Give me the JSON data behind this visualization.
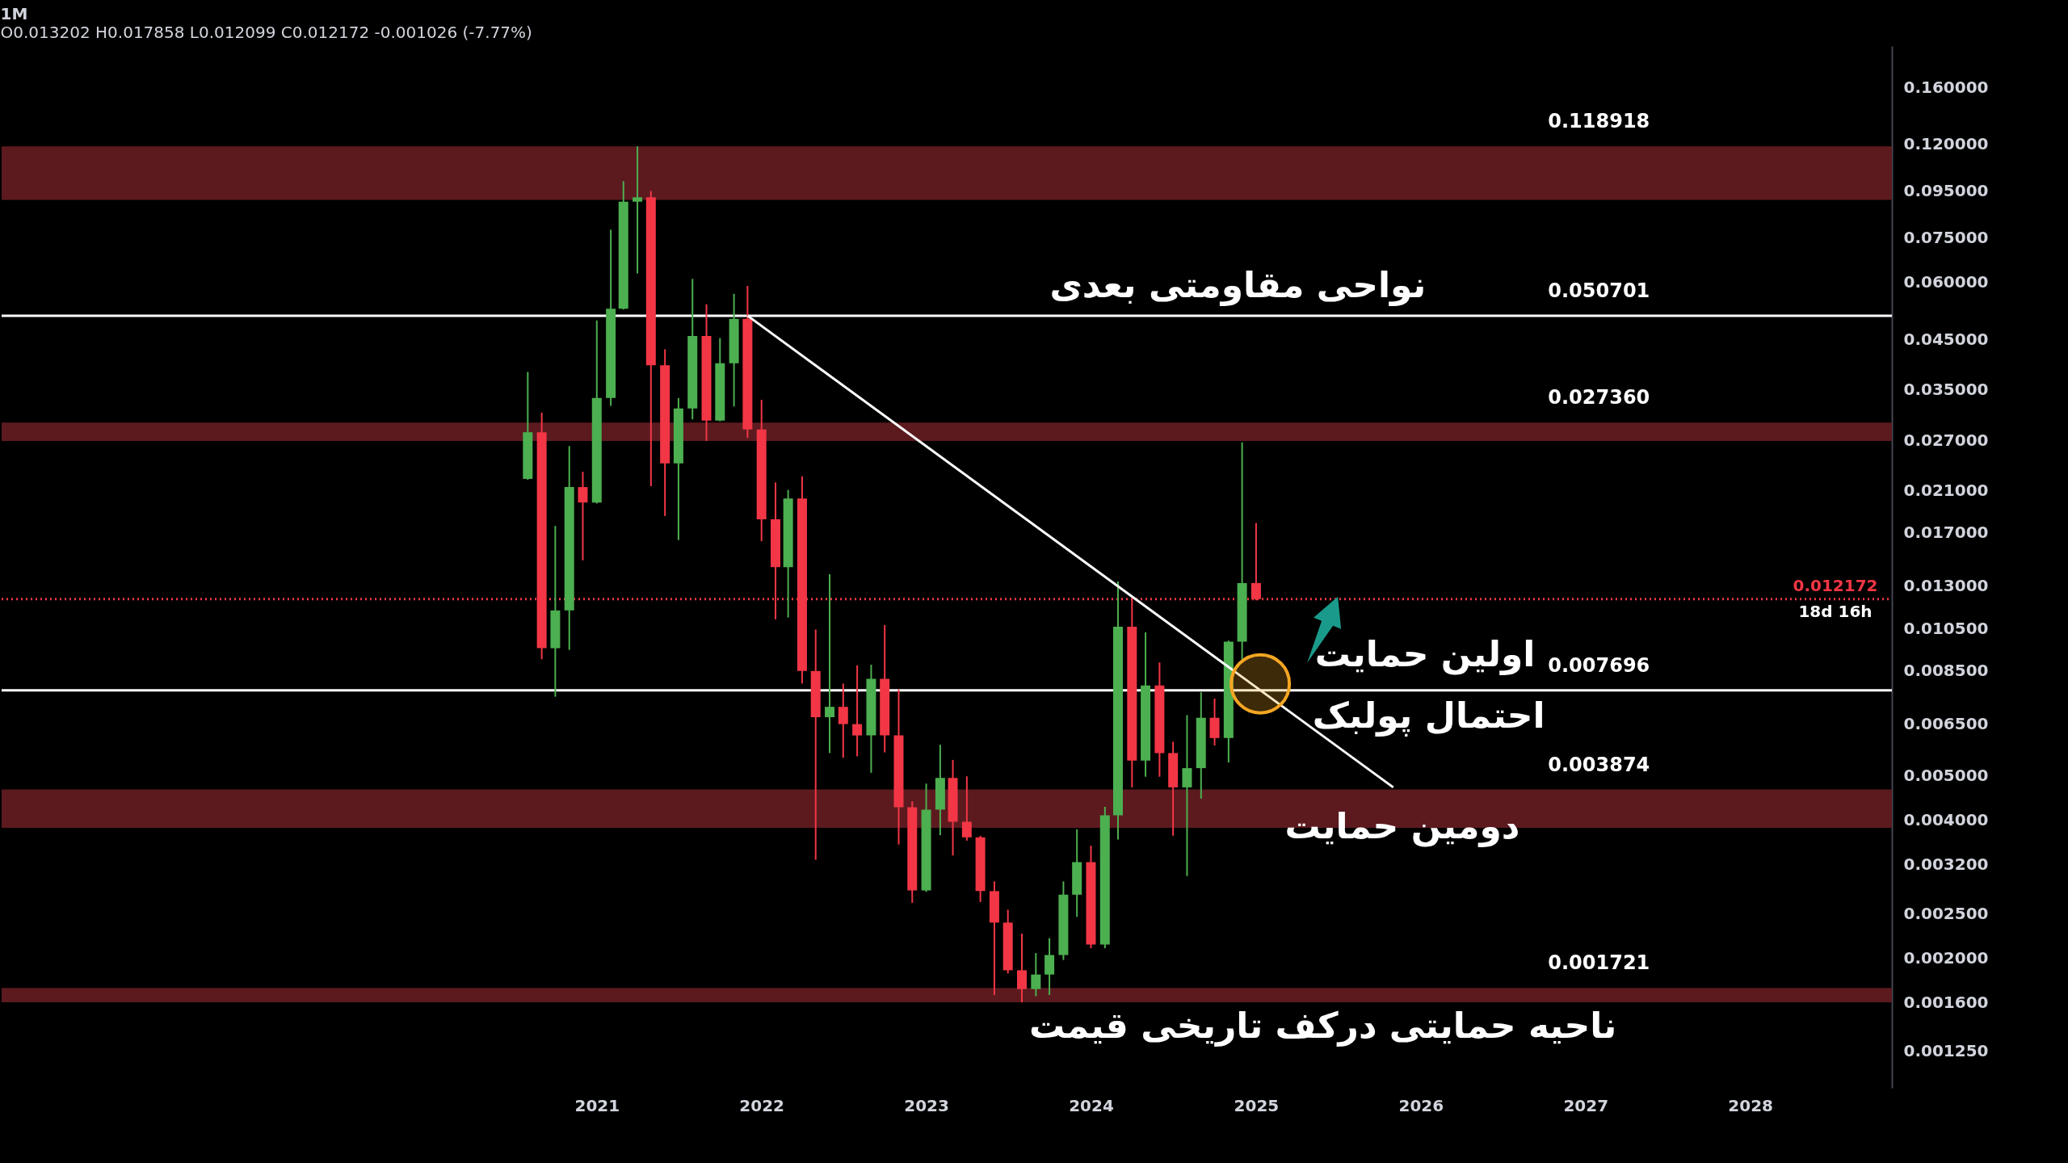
{
  "chart_data": {
    "type": "candlestick",
    "title": "1M",
    "subtitle": "O0.013202 H0.017858 L0.012099 C0.012172 -0.001026 (-7.77%)",
    "x": [
      "2020-08",
      "2020-09",
      "2020-10",
      "2020-11",
      "2020-12",
      "2021-01",
      "2021-02",
      "2021-03",
      "2021-04",
      "2021-05",
      "2021-06",
      "2021-07",
      "2021-08",
      "2021-09",
      "2021-10",
      "2021-11",
      "2021-12",
      "2022-01",
      "2022-02",
      "2022-03",
      "2022-04",
      "2022-05",
      "2022-06",
      "2022-07",
      "2022-08",
      "2022-09",
      "2022-10",
      "2022-11",
      "2022-12",
      "2023-01",
      "2023-02",
      "2023-03",
      "2023-04",
      "2023-05",
      "2023-06",
      "2023-07",
      "2023-08",
      "2023-09",
      "2023-10",
      "2023-11",
      "2023-12",
      "2024-01",
      "2024-02",
      "2024-03",
      "2024-04",
      "2024-05",
      "2024-06",
      "2024-07",
      "2024-08",
      "2024-09",
      "2024-10",
      "2024-11",
      "2024-12",
      "2025-01"
    ],
    "ohlc": [
      [
        0.0223,
        0.0382,
        0.0222,
        0.0282
      ],
      [
        0.0282,
        0.0311,
        0.009,
        0.00951
      ],
      [
        0.00951,
        0.0176,
        0.00745,
        0.0115
      ],
      [
        0.0115,
        0.0263,
        0.00943,
        0.0214
      ],
      [
        0.0214,
        0.0231,
        0.0148,
        0.0198
      ],
      [
        0.0198,
        0.0495,
        0.0197,
        0.0335
      ],
      [
        0.0335,
        0.0782,
        0.0322,
        0.0525
      ],
      [
        0.0525,
        0.0998,
        0.0523,
        0.09
      ],
      [
        0.09,
        0.1189,
        0.0627,
        0.092
      ],
      [
        0.092,
        0.095,
        0.0215,
        0.0395
      ],
      [
        0.0395,
        0.0428,
        0.0185,
        0.0241
      ],
      [
        0.0241,
        0.0335,
        0.0164,
        0.0318
      ],
      [
        0.0318,
        0.061,
        0.0301,
        0.0458
      ],
      [
        0.0458,
        0.0537,
        0.027,
        0.0299
      ],
      [
        0.0299,
        0.0453,
        0.0298,
        0.0399
      ],
      [
        0.0399,
        0.0566,
        0.0321,
        0.0499
      ],
      [
        0.0499,
        0.0589,
        0.0274,
        0.0286
      ],
      [
        0.0286,
        0.0332,
        0.0163,
        0.0182
      ],
      [
        0.0182,
        0.0219,
        0.011,
        0.0143
      ],
      [
        0.0143,
        0.0211,
        0.0111,
        0.0202
      ],
      [
        0.0202,
        0.0226,
        0.00796,
        0.00848
      ],
      [
        0.00848,
        0.01045,
        0.00328,
        0.00672
      ],
      [
        0.00672,
        0.0138,
        0.00561,
        0.00708
      ],
      [
        0.00708,
        0.00796,
        0.00548,
        0.00649
      ],
      [
        0.00649,
        0.00872,
        0.00552,
        0.00613
      ],
      [
        0.00613,
        0.00875,
        0.00508,
        0.00815
      ],
      [
        0.00815,
        0.01069,
        0.00563,
        0.00613
      ],
      [
        0.00613,
        0.00773,
        0.00354,
        0.00427
      ],
      [
        0.00427,
        0.0044,
        0.00264,
        0.00281
      ],
      [
        0.00281,
        0.00481,
        0.00279,
        0.00422
      ],
      [
        0.00422,
        0.00585,
        0.00371,
        0.00495
      ],
      [
        0.00495,
        0.00542,
        0.00335,
        0.00397
      ],
      [
        0.00397,
        0.00499,
        0.00361,
        0.00367
      ],
      [
        0.00367,
        0.0037,
        0.00265,
        0.0028
      ],
      [
        0.0028,
        0.00294,
        0.00166,
        0.00239
      ],
      [
        0.00239,
        0.00255,
        0.00185,
        0.00188
      ],
      [
        0.00188,
        0.00226,
        0.0016,
        0.00171
      ],
      [
        0.00171,
        0.00205,
        0.00165,
        0.00184
      ],
      [
        0.00184,
        0.00221,
        0.00166,
        0.00203
      ],
      [
        0.00203,
        0.00294,
        0.00198,
        0.00275
      ],
      [
        0.00275,
        0.00382,
        0.00246,
        0.00324
      ],
      [
        0.00324,
        0.00352,
        0.0021,
        0.00214
      ],
      [
        0.00214,
        0.00428,
        0.0021,
        0.0041
      ],
      [
        0.0041,
        0.0133,
        0.00363,
        0.0106
      ],
      [
        0.0106,
        0.0122,
        0.00472,
        0.0054
      ],
      [
        0.0054,
        0.0103,
        0.00498,
        0.00788
      ],
      [
        0.00788,
        0.00885,
        0.00498,
        0.00561
      ],
      [
        0.00561,
        0.00594,
        0.0037,
        0.00472
      ],
      [
        0.00472,
        0.00679,
        0.00302,
        0.0052
      ],
      [
        0.0052,
        0.00762,
        0.00446,
        0.0067
      ],
      [
        0.0067,
        0.00738,
        0.00583,
        0.00605
      ],
      [
        0.00605,
        0.00988,
        0.00535,
        0.00983
      ],
      [
        0.00983,
        0.0268,
        0.00888,
        0.013202
      ],
      [
        0.013202,
        0.017858,
        0.012099,
        0.012172
      ]
    ],
    "colors": [
      "#4caf50",
      "#f23645",
      "#4caf50",
      "#4caf50",
      "#f23645",
      "#4caf50",
      "#4caf50",
      "#4caf50",
      "#4caf50",
      "#f23645",
      "#f23645",
      "#4caf50",
      "#4caf50",
      "#f23645",
      "#4caf50",
      "#4caf50",
      "#f23645",
      "#f23645",
      "#f23645",
      "#4caf50",
      "#f23645",
      "#f23645",
      "#4caf50",
      "#f23645",
      "#f23645",
      "#4caf50",
      "#f23645",
      "#f23645",
      "#f23645",
      "#4caf50",
      "#4caf50",
      "#f23645",
      "#f23645",
      "#f23645",
      "#f23645",
      "#f23645",
      "#f23645",
      "#4caf50",
      "#4caf50",
      "#4caf50",
      "#4caf50",
      "#f23645",
      "#4caf50",
      "#4caf50",
      "#f23645",
      "#4caf50",
      "#f23645",
      "#f23645",
      "#4caf50",
      "#4caf50",
      "#f23645",
      "#4caf50",
      "#4caf50",
      "#f23645"
    ],
    "series": [
      {
        "type": "line",
        "x": [
          "2021-12",
          "2025-11"
        ],
        "values": [
          0.0507,
          0.00472
        ],
        "color": "#ffffff"
      }
    ],
    "log": true,
    "grid": false,
    "xlim": [
      "2017-06",
      "2028-11"
    ],
    "xticks": [
      "2021",
      "2022",
      "2023",
      "2024",
      "2025",
      "2026",
      "2027",
      "2028"
    ],
    "ylim": [
      0.00104,
      0.197
    ],
    "yticks": [
      {
        "value": 0.00125,
        "label": "0.001250"
      },
      {
        "value": 0.0016,
        "label": "0.001600"
      },
      {
        "value": 0.002,
        "label": "0.002000"
      },
      {
        "value": 0.0025,
        "label": "0.002500"
      },
      {
        "value": 0.0032,
        "label": "0.003200"
      },
      {
        "value": 0.004,
        "label": "0.004000"
      },
      {
        "value": 0.005,
        "label": "0.005000"
      },
      {
        "value": 0.0065,
        "label": "0.006500"
      },
      {
        "value": 0.0085,
        "label": "0.008500"
      },
      {
        "value": 0.0105,
        "label": "0.010500"
      },
      {
        "value": 0.013,
        "label": "0.013000"
      },
      {
        "value": 0.017,
        "label": "0.017000"
      },
      {
        "value": 0.021,
        "label": "0.021000"
      },
      {
        "value": 0.027,
        "label": "0.027000"
      },
      {
        "value": 0.035,
        "label": "0.035000"
      },
      {
        "value": 0.045,
        "label": "0.045000"
      },
      {
        "value": 0.06,
        "label": "0.060000"
      },
      {
        "value": 0.075,
        "label": "0.075000"
      },
      {
        "value": 0.095,
        "label": "0.095000"
      },
      {
        "value": 0.12,
        "label": "0.120000"
      },
      {
        "value": 0.16,
        "label": "0.160000"
      }
    ],
    "bands": [
      {
        "axis": "y",
        "from": 0.0908,
        "to": 0.118918,
        "label": "0.118918",
        "color": "#5c1a1f"
      },
      {
        "axis": "y",
        "from": 0.027,
        "to": 0.0296,
        "label": "0.027360",
        "color": "#5c1a1f"
      },
      {
        "axis": "y",
        "from": 0.00385,
        "to": 0.00467,
        "label": "0.003874",
        "color": "#5c1a1f"
      },
      {
        "axis": "y",
        "from": 0.0016,
        "to": 0.00172,
        "label": "0.001721",
        "color": "#5c1a1f"
      }
    ],
    "ref_lines": [
      {
        "axis": "y",
        "value": 0.050701,
        "label": "0.050701",
        "color": "#ffffff",
        "line_style": "solid"
      },
      {
        "axis": "y",
        "value": 0.007696,
        "label": "0.007696",
        "color": "#ffffff",
        "line_style": "solid"
      },
      {
        "axis": "y",
        "value": 0.012172,
        "label": "0.012172",
        "color": "#f23645",
        "line_style": "dotted"
      }
    ],
    "annotations": [
      "نواحی مقاومتی بعدی",
      "اولین حمایت",
      "احتمال پولبک",
      "دومین حمایت",
      "ناحیه حمایتی درکف تاریخی قیمت",
      "18d 16h"
    ]
  }
}
